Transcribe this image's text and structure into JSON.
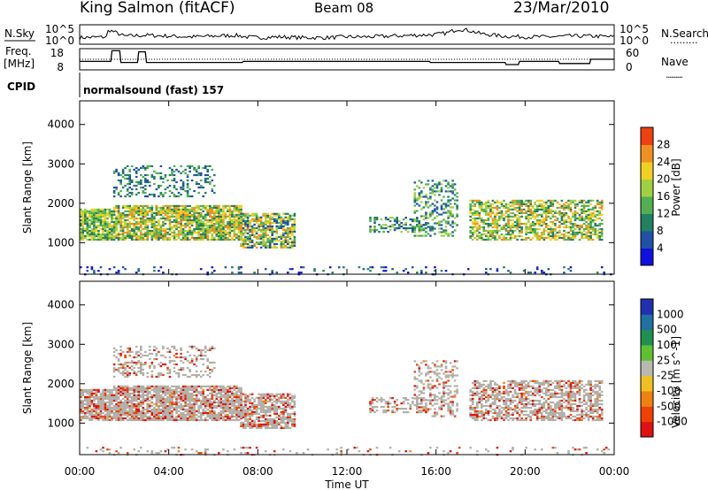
{
  "header": {
    "station": "King Salmon (fitACF)",
    "beam": "Beam 08",
    "date": "23/Mar/2010"
  },
  "side_labels": {
    "nsky": "N.Sky",
    "nsearch": "N.Search",
    "freq_line1": "Freq.",
    "freq_line2": "[MHz]",
    "nave": "Nave",
    "cpid": "CPID",
    "dots": "........."
  },
  "cpid_text": "normalsound (fast) 157",
  "chart_data": [
    {
      "type": "line",
      "name": "noise",
      "left_axis": {
        "label": "N.Sky",
        "ticks": [
          "10^5",
          "10^0"
        ]
      },
      "right_axis": {
        "label": "N.Search",
        "ticks": [
          "10^5",
          "10^0"
        ]
      },
      "series_hours": [
        0,
        1.2,
        1.3,
        2,
        3,
        4,
        5,
        6,
        7,
        7.5,
        8,
        9,
        10,
        11,
        12,
        13,
        14,
        15,
        16,
        16.5,
        17,
        17.5,
        18,
        19,
        20,
        21,
        22,
        23,
        24
      ],
      "series_level": [
        0.3,
        0.35,
        0.8,
        0.4,
        0.45,
        0.4,
        0.35,
        0.4,
        0.45,
        0.35,
        0.3,
        0.35,
        0.3,
        0.3,
        0.35,
        0.35,
        0.4,
        0.45,
        0.5,
        0.6,
        0.85,
        0.75,
        0.55,
        0.4,
        0.35,
        0.35,
        0.4,
        0.4,
        0.35
      ]
    },
    {
      "type": "line",
      "name": "frequency",
      "left_axis": {
        "label": "Freq. [MHz]",
        "ticks": [
          18,
          8
        ]
      },
      "right_axis": {
        "label": "Nave",
        "ticks": [
          60,
          0
        ]
      },
      "freq_steps_hours": [
        0,
        1.4,
        1.45,
        1.8,
        1.85,
        2.6,
        2.65,
        2.95,
        3,
        7.3,
        7.35,
        15.7,
        15.75,
        19.1,
        19.15,
        19.7,
        19.75,
        21.5,
        21.55,
        22.9,
        22.95,
        24
      ],
      "freq_steps_mhz": [
        12,
        12,
        17,
        17,
        11.5,
        11.5,
        16.5,
        16.5,
        11.5,
        11.5,
        12,
        12,
        11.5,
        11.5,
        10.5,
        10.5,
        12,
        12,
        11,
        11,
        13,
        13
      ],
      "nave_level": 30
    },
    {
      "type": "heatmap",
      "name": "power",
      "ylabel": "Slant Range [km]",
      "yticks": [
        1000,
        2000,
        3000,
        4000
      ],
      "ylim": [
        200,
        4600
      ],
      "xlim": [
        0,
        24
      ],
      "colorbar": {
        "label": "Power [dB]",
        "ticks": [
          4,
          8,
          12,
          16,
          20,
          24,
          28
        ]
      }
    },
    {
      "type": "heatmap",
      "name": "velocity",
      "ylabel": "Slant Range [km]",
      "yticks": [
        1000,
        2000,
        3000,
        4000
      ],
      "ylim": [
        200,
        4600
      ],
      "xlim": [
        0,
        24
      ],
      "colorbar": {
        "label": "Velocity [m s^-1]",
        "ticks": [
          1000,
          500,
          100,
          25,
          -25,
          -100,
          -500,
          -1000
        ]
      }
    }
  ],
  "x_axis": {
    "label": "Time UT",
    "ticks": [
      "00:00",
      "04:00",
      "08:00",
      "12:00",
      "16:00",
      "20:00",
      "00:00"
    ]
  },
  "colors": {
    "power_scale": [
      "#1010e0",
      "#2050a8",
      "#208060",
      "#50b050",
      "#a0d040",
      "#f0d020",
      "#f09020",
      "#f04010",
      "#e01010"
    ],
    "velocity_scale": [
      "#2030b0",
      "#2070a0",
      "#209050",
      "#60c030",
      "#b8b8b0",
      "#f0c020",
      "#f08010",
      "#f04000",
      "#e01010"
    ],
    "ground_scatter": "#b0b0a8"
  }
}
